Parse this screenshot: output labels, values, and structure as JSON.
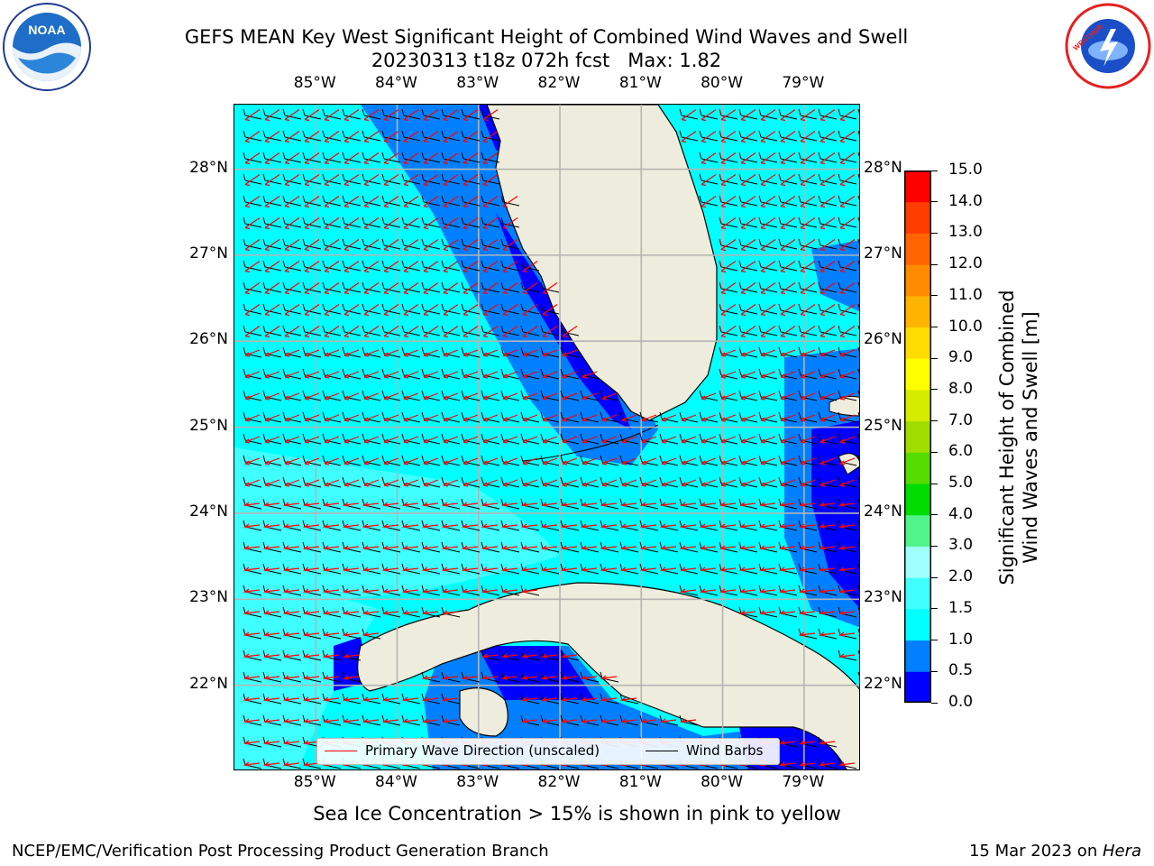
{
  "header": {
    "title_line1": "GEFS MEAN Key West Significant Height of Combined Wind Waves and Swell",
    "title_line2": "20230313 t18z 072h fcst   Max: 1.82"
  },
  "logos": {
    "left": {
      "name": "NOAA",
      "ring_text": "NATIONAL OCEANIC AND ATMOSPHERIC ADMINISTRATION · U.S. DEPARTMENT OF COMMERCE"
    },
    "right": {
      "ring_text": "NATIONAL WEATHER SERVICE"
    }
  },
  "chart_data": {
    "type": "heatmap",
    "title": "GEFS MEAN Key West Significant Height of Combined Wind Waves and Swell",
    "subtitle": "20230313 t18z 072h fcst   Max: 1.82",
    "max_value": 1.82,
    "x_ticks": [
      "85°W",
      "84°W",
      "83°W",
      "82°W",
      "81°W",
      "80°W",
      "79°W"
    ],
    "y_ticks": [
      "28°N",
      "27°N",
      "26°N",
      "25°N",
      "24°N",
      "23°N",
      "22°N"
    ],
    "lon_range": [
      -86.0,
      -78.3
    ],
    "lat_range": [
      21.0,
      28.75
    ],
    "colorbar": {
      "label": "Significant Height of Combined Wind Waves and Swell [m]",
      "label_line1": "Significant Height of Combined",
      "label_line2": "Wind Waves and Swell [m]",
      "ticks": [
        "0.0",
        "0.5",
        "1.0",
        "1.5",
        "2.0",
        "3.0",
        "4.0",
        "5.0",
        "6.0",
        "7.0",
        "8.0",
        "9.0",
        "10.0",
        "11.0",
        "12.0",
        "13.0",
        "14.0",
        "15.0"
      ],
      "colors": [
        "#0000ff",
        "#0080ff",
        "#00ffff",
        "#40ffff",
        "#a0ffff",
        "#50f58a",
        "#00dc00",
        "#55dc00",
        "#a0dc00",
        "#d4ec00",
        "#ffff00",
        "#ffdd00",
        "#ffb400",
        "#ff8c00",
        "#ff6400",
        "#ff3c00",
        "#ff0000"
      ]
    },
    "legend": [
      {
        "label": "Primary Wave Direction (unscaled)",
        "color": "#ff0000"
      },
      {
        "label": "Wind Barbs",
        "color": "#000000"
      }
    ],
    "note": "Sea Ice Concentration > 15% is shown in pink to yellow",
    "grid": true
  },
  "footer": {
    "left": "NCEP/EMC/Verification Post Processing Product Generation Branch",
    "right_prefix": "15 Mar 2023 on ",
    "right_host": "Hera"
  }
}
